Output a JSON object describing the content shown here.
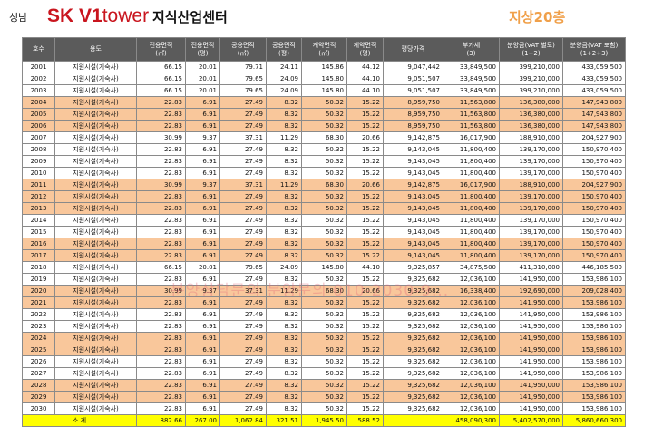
{
  "header": {
    "region": "성남",
    "brand_sk": "SK",
    "brand_v1": "V1",
    "brand_tower": "tower",
    "title": "지식산업센터",
    "floor": "지상20층"
  },
  "watermark": "분양상담문의  분양문의  010-2030-9...",
  "columns": [
    {
      "l1": "호수",
      "l2": ""
    },
    {
      "l1": "용도",
      "l2": ""
    },
    {
      "l1": "전용면적",
      "l2": "(㎡)"
    },
    {
      "l1": "전용면적",
      "l2": "(평)"
    },
    {
      "l1": "공용면적",
      "l2": "(㎡)"
    },
    {
      "l1": "공용면적",
      "l2": "(평)"
    },
    {
      "l1": "계약면적",
      "l2": "(㎡)"
    },
    {
      "l1": "계약면적",
      "l2": "(평)"
    },
    {
      "l1": "평당가격",
      "l2": ""
    },
    {
      "l1": "부가세",
      "l2": "(3)"
    },
    {
      "l1": "분양금(VAT 별도)",
      "l2": "(1+2)"
    },
    {
      "l1": "분양금(VAT 포함)",
      "l2": "(1+2+3)"
    }
  ],
  "rows": [
    [
      "2001",
      "지원시설(기숙사)",
      "66.15",
      "20.01",
      "79.71",
      "24.11",
      "145.86",
      "44.12",
      "9,047,442",
      "33,849,500",
      "399,210,000",
      "433,059,500"
    ],
    [
      "2002",
      "지원시설(기숙사)",
      "66.15",
      "20.01",
      "79.65",
      "24.09",
      "145.80",
      "44.10",
      "9,051,507",
      "33,849,500",
      "399,210,000",
      "433,059,500"
    ],
    [
      "2003",
      "지원시설(기숙사)",
      "66.15",
      "20.01",
      "79.65",
      "24.09",
      "145.80",
      "44.10",
      "9,051,507",
      "33,849,500",
      "399,210,000",
      "433,059,500"
    ],
    [
      "2004",
      "지원시설(기숙사)",
      "22.83",
      "6.91",
      "27.49",
      "8.32",
      "50.32",
      "15.22",
      "8,959,750",
      "11,563,800",
      "136,380,000",
      "147,943,800"
    ],
    [
      "2005",
      "지원시설(기숙사)",
      "22.83",
      "6.91",
      "27.49",
      "8.32",
      "50.32",
      "15.22",
      "8,959,750",
      "11,563,800",
      "136,380,000",
      "147,943,800"
    ],
    [
      "2006",
      "지원시설(기숙사)",
      "22.83",
      "6.91",
      "27.49",
      "8.32",
      "50.32",
      "15.22",
      "8,959,750",
      "11,563,800",
      "136,380,000",
      "147,943,800"
    ],
    [
      "2007",
      "지원시설(기숙사)",
      "30.99",
      "9.37",
      "37.31",
      "11.29",
      "68.30",
      "20.66",
      "9,142,875",
      "16,017,900",
      "188,910,000",
      "204,927,900"
    ],
    [
      "2008",
      "지원시설(기숙사)",
      "22.83",
      "6.91",
      "27.49",
      "8.32",
      "50.32",
      "15.22",
      "9,143,045",
      "11,800,400",
      "139,170,000",
      "150,970,400"
    ],
    [
      "2009",
      "지원시설(기숙사)",
      "22.83",
      "6.91",
      "27.49",
      "8.32",
      "50.32",
      "15.22",
      "9,143,045",
      "11,800,400",
      "139,170,000",
      "150,970,400"
    ],
    [
      "2010",
      "지원시설(기숙사)",
      "22.83",
      "6.91",
      "27.49",
      "8.32",
      "50.32",
      "15.22",
      "9,143,045",
      "11,800,400",
      "139,170,000",
      "150,970,400"
    ],
    [
      "2011",
      "지원시설(기숙사)",
      "30.99",
      "9.37",
      "37.31",
      "11.29",
      "68.30",
      "20.66",
      "9,142,875",
      "16,017,900",
      "188,910,000",
      "204,927,900"
    ],
    [
      "2012",
      "지원시설(기숙사)",
      "22.83",
      "6.91",
      "27.49",
      "8.32",
      "50.32",
      "15.22",
      "9,143,045",
      "11,800,400",
      "139,170,000",
      "150,970,400"
    ],
    [
      "2013",
      "지원시설(기숙사)",
      "22.83",
      "6.91",
      "27.49",
      "8.32",
      "50.32",
      "15.22",
      "9,143,045",
      "11,800,400",
      "139,170,000",
      "150,970,400"
    ],
    [
      "2014",
      "지원시설(기숙사)",
      "22.83",
      "6.91",
      "27.49",
      "8.32",
      "50.32",
      "15.22",
      "9,143,045",
      "11,800,400",
      "139,170,000",
      "150,970,400"
    ],
    [
      "2015",
      "지원시설(기숙사)",
      "22.83",
      "6.91",
      "27.49",
      "8.32",
      "50.32",
      "15.22",
      "9,143,045",
      "11,800,400",
      "139,170,000",
      "150,970,400"
    ],
    [
      "2016",
      "지원시설(기숙사)",
      "22.83",
      "6.91",
      "27.49",
      "8.32",
      "50.32",
      "15.22",
      "9,143,045",
      "11,800,400",
      "139,170,000",
      "150,970,400"
    ],
    [
      "2017",
      "지원시설(기숙사)",
      "22.83",
      "6.91",
      "27.49",
      "8.32",
      "50.32",
      "15.22",
      "9,143,045",
      "11,800,400",
      "139,170,000",
      "150,970,400"
    ],
    [
      "2018",
      "지원시설(기숙사)",
      "66.15",
      "20.01",
      "79.65",
      "24.09",
      "145.80",
      "44.10",
      "9,325,857",
      "34,875,500",
      "411,310,000",
      "446,185,500"
    ],
    [
      "2019",
      "지원시설(기숙사)",
      "22.83",
      "6.91",
      "27.49",
      "8.32",
      "50.32",
      "15.22",
      "9,325,682",
      "12,036,100",
      "141,950,000",
      "153,986,100"
    ],
    [
      "2020",
      "지원시설(기숙사)",
      "30.99",
      "9.37",
      "37.31",
      "11.29",
      "68.30",
      "20.66",
      "9,325,682",
      "16,338,400",
      "192,690,000",
      "209,028,400"
    ],
    [
      "2021",
      "지원시설(기숙사)",
      "22.83",
      "6.91",
      "27.49",
      "8.32",
      "50.32",
      "15.22",
      "9,325,682",
      "12,036,100",
      "141,950,000",
      "153,986,100"
    ],
    [
      "2022",
      "지원시설(기숙사)",
      "22.83",
      "6.91",
      "27.49",
      "8.32",
      "50.32",
      "15.22",
      "9,325,682",
      "12,036,100",
      "141,950,000",
      "153,986,100"
    ],
    [
      "2023",
      "지원시설(기숙사)",
      "22.83",
      "6.91",
      "27.49",
      "8.32",
      "50.32",
      "15.22",
      "9,325,682",
      "12,036,100",
      "141,950,000",
      "153,986,100"
    ],
    [
      "2024",
      "지원시설(기숙사)",
      "22.83",
      "6.91",
      "27.49",
      "8.32",
      "50.32",
      "15.22",
      "9,325,682",
      "12,036,100",
      "141,950,000",
      "153,986,100"
    ],
    [
      "2025",
      "지원시설(기숙사)",
      "22.83",
      "6.91",
      "27.49",
      "8.32",
      "50.32",
      "15.22",
      "9,325,682",
      "12,036,100",
      "141,950,000",
      "153,986,100"
    ],
    [
      "2026",
      "지원시설(기숙사)",
      "22.83",
      "6.91",
      "27.49",
      "8.32",
      "50.32",
      "15.22",
      "9,325,682",
      "12,036,100",
      "141,950,000",
      "153,986,100"
    ],
    [
      "2027",
      "지원시설(기숙사)",
      "22.83",
      "6.91",
      "27.49",
      "8.32",
      "50.32",
      "15.22",
      "9,325,682",
      "12,036,100",
      "141,950,000",
      "153,986,100"
    ],
    [
      "2028",
      "지원시설(기숙사)",
      "22.83",
      "6.91",
      "27.49",
      "8.32",
      "50.32",
      "15.22",
      "9,325,682",
      "12,036,100",
      "141,950,000",
      "153,986,100"
    ],
    [
      "2029",
      "지원시설(기숙사)",
      "22.83",
      "6.91",
      "27.49",
      "8.32",
      "50.32",
      "15.22",
      "9,325,682",
      "12,036,100",
      "141,950,000",
      "153,986,100"
    ],
    [
      "2030",
      "지원시설(기숙사)",
      "22.83",
      "6.91",
      "27.49",
      "8.32",
      "50.32",
      "15.22",
      "9,325,682",
      "12,036,100",
      "141,950,000",
      "153,986,100"
    ]
  ],
  "total_row": [
    "소    계",
    "882.66",
    "267.00",
    "1,062.84",
    "321.51",
    "1,945.50",
    "588.52",
    "",
    "458,090,300",
    "5,402,570,000",
    "5,860,660,300"
  ],
  "colors": {
    "header_bg": "#5b5b5b",
    "orange_row": "#f9c79b",
    "total_row": "#ffff00",
    "brand_red": "#c9151e",
    "floor_orange": "#f0a04a"
  }
}
